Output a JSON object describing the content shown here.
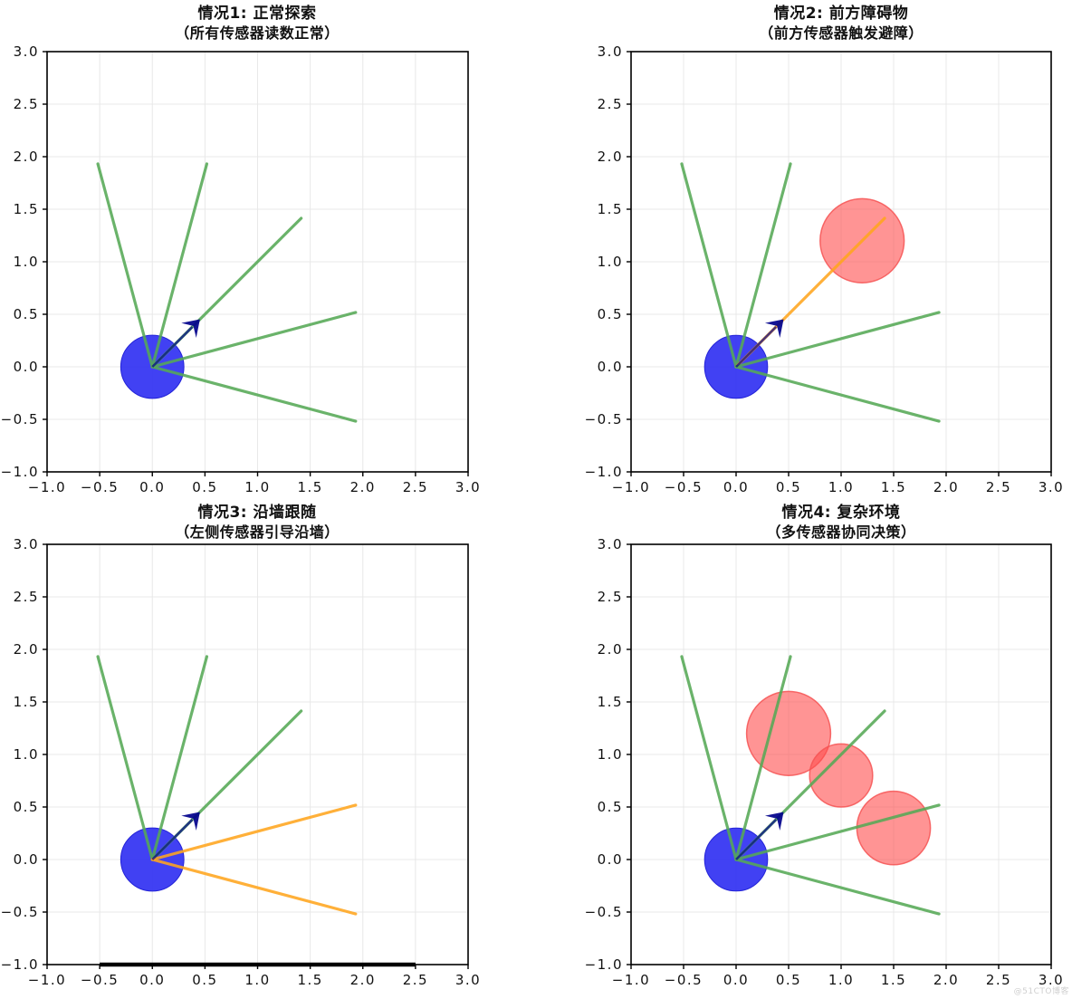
{
  "page": {
    "background": "#ffffff",
    "watermark": "@51CTO博客"
  },
  "colors": {
    "robot_fill": "#3333f2",
    "robot_edge": "#2424d8",
    "ray_normal": "#55a855",
    "ray_triggered": "#ffa51e",
    "obstacle_fill": "#ff4d4d",
    "obstacle_edge": "#f65454",
    "heading_arrow": "#00008b",
    "wall": "#000000",
    "grid": "#e8e8e8",
    "spine": "#000000",
    "tick": "#000000",
    "title_text": "#111111"
  },
  "axes": {
    "xlim": [
      -1.0,
      3.0
    ],
    "ylim": [
      -1.0,
      3.0
    ],
    "xtick_labels": [
      "−1.0",
      "−0.5",
      "0.0",
      "0.5",
      "1.0",
      "1.5",
      "2.0",
      "2.5",
      "3.0"
    ],
    "ytick_labels": [
      "−1.0",
      "−0.5",
      "0.0",
      "0.5",
      "1.0",
      "1.5",
      "2.0",
      "2.5",
      "3.0"
    ],
    "tick_values": [
      -1.0,
      -0.5,
      0.0,
      0.5,
      1.0,
      1.5,
      2.0,
      2.5,
      3.0
    ],
    "grid": true
  },
  "chart_data": [
    {
      "type": "scatter",
      "title": "情况1: 正常探索",
      "subtitle": "（所有传感器读数正常）",
      "xlim": [
        -1.0,
        3.0
      ],
      "ylim": [
        -1.0,
        3.0
      ],
      "robot": {
        "x": 0.0,
        "y": 0.0,
        "radius": 0.3,
        "heading_deg": 45,
        "heading_len": 0.64
      },
      "sensor_rays": [
        {
          "angle_deg": 105,
          "length": 2.0,
          "end": [
            -0.52,
            1.93
          ],
          "state": "normal"
        },
        {
          "angle_deg": 75,
          "length": 2.0,
          "end": [
            0.52,
            1.93
          ],
          "state": "normal"
        },
        {
          "angle_deg": 45,
          "length": 2.0,
          "end": [
            1.41,
            1.41
          ],
          "state": "normal"
        },
        {
          "angle_deg": 15,
          "length": 2.0,
          "end": [
            1.93,
            0.52
          ],
          "state": "normal"
        },
        {
          "angle_deg": -15,
          "length": 2.0,
          "end": [
            1.93,
            -0.52
          ],
          "state": "normal"
        }
      ],
      "obstacles": [],
      "wall": null
    },
    {
      "type": "scatter",
      "title": "情况2: 前方障碍物",
      "subtitle": "（前方传感器触发避障）",
      "xlim": [
        -1.0,
        3.0
      ],
      "ylim": [
        -1.0,
        3.0
      ],
      "robot": {
        "x": 0.0,
        "y": 0.0,
        "radius": 0.3,
        "heading_deg": 45,
        "heading_len": 0.64
      },
      "sensor_rays": [
        {
          "angle_deg": 105,
          "length": 2.0,
          "end": [
            -0.52,
            1.93
          ],
          "state": "normal"
        },
        {
          "angle_deg": 75,
          "length": 2.0,
          "end": [
            0.52,
            1.93
          ],
          "state": "normal"
        },
        {
          "angle_deg": 45,
          "length": 2.0,
          "end": [
            1.41,
            1.41
          ],
          "state": "triggered"
        },
        {
          "angle_deg": 15,
          "length": 2.0,
          "end": [
            1.93,
            0.52
          ],
          "state": "normal"
        },
        {
          "angle_deg": -15,
          "length": 2.0,
          "end": [
            1.93,
            -0.52
          ],
          "state": "normal"
        }
      ],
      "obstacles": [
        {
          "x": 1.2,
          "y": 1.2,
          "r": 0.4
        }
      ],
      "wall": null
    },
    {
      "type": "scatter",
      "title": "情况3: 沿墙跟随",
      "subtitle": "（左侧传感器引导沿墙）",
      "xlim": [
        -1.0,
        3.0
      ],
      "ylim": [
        -1.0,
        3.0
      ],
      "robot": {
        "x": 0.0,
        "y": 0.0,
        "radius": 0.3,
        "heading_deg": 45,
        "heading_len": 0.64
      },
      "sensor_rays": [
        {
          "angle_deg": 105,
          "length": 2.0,
          "end": [
            -0.52,
            1.93
          ],
          "state": "normal"
        },
        {
          "angle_deg": 75,
          "length": 2.0,
          "end": [
            0.52,
            1.93
          ],
          "state": "normal"
        },
        {
          "angle_deg": 45,
          "length": 2.0,
          "end": [
            1.41,
            1.41
          ],
          "state": "normal"
        },
        {
          "angle_deg": 15,
          "length": 2.0,
          "end": [
            1.93,
            0.52
          ],
          "state": "triggered"
        },
        {
          "angle_deg": -15,
          "length": 2.0,
          "end": [
            1.93,
            -0.52
          ],
          "state": "triggered"
        }
      ],
      "obstacles": [],
      "wall": {
        "y": -1.0,
        "x1": -0.5,
        "x2": 2.5
      }
    },
    {
      "type": "scatter",
      "title": "情况4: 复杂环境",
      "subtitle": "（多传感器协同决策）",
      "xlim": [
        -1.0,
        3.0
      ],
      "ylim": [
        -1.0,
        3.0
      ],
      "robot": {
        "x": 0.0,
        "y": 0.0,
        "radius": 0.3,
        "heading_deg": 45,
        "heading_len": 0.64
      },
      "sensor_rays": [
        {
          "angle_deg": 105,
          "length": 2.0,
          "end": [
            -0.52,
            1.93
          ],
          "state": "normal"
        },
        {
          "angle_deg": 75,
          "length": 2.0,
          "end": [
            0.52,
            1.93
          ],
          "state": "normal"
        },
        {
          "angle_deg": 45,
          "length": 2.0,
          "end": [
            1.41,
            1.41
          ],
          "state": "normal"
        },
        {
          "angle_deg": 15,
          "length": 2.0,
          "end": [
            1.93,
            0.52
          ],
          "state": "normal"
        },
        {
          "angle_deg": -15,
          "length": 2.0,
          "end": [
            1.93,
            -0.52
          ],
          "state": "normal"
        }
      ],
      "obstacles": [
        {
          "x": 0.5,
          "y": 1.2,
          "r": 0.4
        },
        {
          "x": 1.0,
          "y": 0.8,
          "r": 0.3
        },
        {
          "x": 1.5,
          "y": 0.3,
          "r": 0.35
        }
      ],
      "wall": null
    }
  ]
}
